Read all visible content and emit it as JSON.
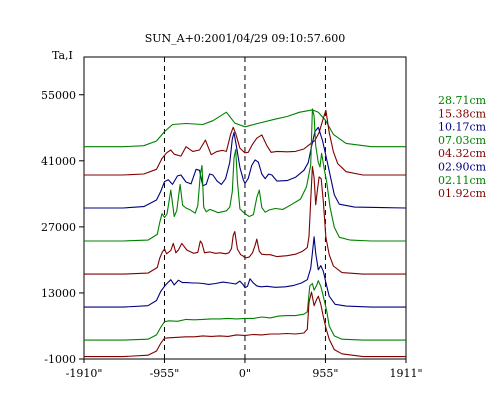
{
  "chart_data": {
    "type": "line",
    "title": "SUN_A+0:2001/04/29 09:10:57.600",
    "ylabel": "Ta,I",
    "xlabel": "",
    "xlim": [
      -1910,
      1911
    ],
    "ylim": [
      -1000,
      63000
    ],
    "x_ticks": [
      {
        "value": -1910,
        "label": "-1910\""
      },
      {
        "value": -955,
        "label": "-955\""
      },
      {
        "value": 0,
        "label": "0\""
      },
      {
        "value": 955,
        "label": "955\""
      },
      {
        "value": 1911,
        "label": "1911\""
      }
    ],
    "y_ticks": [
      {
        "value": 55000,
        "label": "55000"
      },
      {
        "value": 41000,
        "label": "41000"
      },
      {
        "value": 27000,
        "label": "27000"
      },
      {
        "value": 13000,
        "label": "13000"
      },
      {
        "value": -1000,
        "label": "-1000"
      }
    ],
    "vlines": [
      -955,
      0,
      955
    ],
    "grid": false,
    "legend": "right",
    "series": [
      {
        "name": "28.71cm",
        "color": "#008000",
        "x": [
          -1910,
          -1450,
          -1200,
          -1050,
          -955,
          -860,
          -700,
          -500,
          -380,
          -220,
          -120,
          0,
          150,
          350,
          500,
          650,
          800,
          870,
          955,
          1050,
          1200,
          1500,
          1911
        ],
        "y": [
          44000,
          44000,
          44200,
          45200,
          47200,
          48700,
          48900,
          48700,
          49500,
          51300,
          49000,
          48200,
          48900,
          49800,
          50400,
          51300,
          51800,
          51300,
          49600,
          46600,
          44700,
          44000,
          44000
        ]
      },
      {
        "name": "15.38cm",
        "color": "#800000",
        "x": [
          -1910,
          -1450,
          -1200,
          -1050,
          -985,
          -930,
          -880,
          -840,
          -760,
          -700,
          -620,
          -540,
          -470,
          -400,
          -330,
          -270,
          -220,
          -170,
          -140,
          -110,
          -60,
          -20,
          0,
          40,
          90,
          140,
          200,
          260,
          310,
          380,
          500,
          600,
          700,
          770,
          830,
          880,
          930,
          960,
          1000,
          1050,
          1100,
          1200,
          1400,
          1911
        ],
        "y": [
          38000,
          38000,
          38200,
          39200,
          41500,
          42700,
          43300,
          42400,
          42000,
          44000,
          43000,
          43300,
          45400,
          42300,
          43000,
          43200,
          43000,
          46600,
          48100,
          46800,
          43700,
          43000,
          42700,
          42800,
          44500,
          45800,
          46500,
          44200,
          42800,
          43000,
          42900,
          43000,
          43500,
          44500,
          45300,
          47000,
          50000,
          51700,
          47000,
          42900,
          40400,
          38700,
          38000,
          38000
        ]
      },
      {
        "name": "10.17cm",
        "color": "#000080",
        "x": [
          -1910,
          -1450,
          -1200,
          -1050,
          -1000,
          -955,
          -910,
          -860,
          -800,
          -760,
          -700,
          -640,
          -580,
          -540,
          -500,
          -460,
          -420,
          -380,
          -330,
          -280,
          -230,
          -180,
          -150,
          -130,
          -100,
          -60,
          -20,
          0,
          40,
          80,
          120,
          160,
          200,
          240,
          280,
          320,
          380,
          500,
          600,
          700,
          750,
          790,
          830,
          870,
          920,
          970,
          1020,
          1060,
          1120,
          1300,
          1911
        ],
        "y": [
          31000,
          31000,
          31300,
          32700,
          34500,
          36600,
          37000,
          36000,
          37800,
          38000,
          36500,
          36100,
          39200,
          39000,
          35700,
          36000,
          38200,
          38000,
          36700,
          36000,
          37200,
          40700,
          45600,
          47000,
          44000,
          39600,
          37000,
          36200,
          37300,
          40000,
          41200,
          40700,
          38200,
          37200,
          38200,
          38000,
          36700,
          36800,
          37500,
          39000,
          40600,
          44000,
          47200,
          48100,
          45300,
          41300,
          37200,
          33800,
          31800,
          31200,
          31000
        ]
      },
      {
        "name": "07.03cm",
        "color": "#008000",
        "x": [
          -1910,
          -1450,
          -1150,
          -1040,
          -1010,
          -985,
          -955,
          -925,
          -880,
          -840,
          -810,
          -770,
          -740,
          -700,
          -650,
          -590,
          -560,
          -530,
          -510,
          -490,
          -460,
          -420,
          -370,
          -320,
          -270,
          -220,
          -180,
          -150,
          -130,
          -110,
          -90,
          -60,
          -30,
          0,
          50,
          100,
          140,
          170,
          200,
          240,
          290,
          360,
          450,
          560,
          660,
          730,
          780,
          800,
          820,
          840,
          870,
          890,
          910,
          940,
          970,
          1010,
          1060,
          1120,
          1250,
          1500,
          1911
        ],
        "y": [
          24000,
          24000,
          24200,
          25400,
          28000,
          29800,
          29000,
          29700,
          34800,
          29200,
          30400,
          36000,
          31600,
          31000,
          30600,
          29900,
          31500,
          38100,
          40000,
          31200,
          30200,
          30700,
          30400,
          30000,
          30200,
          30400,
          31200,
          34500,
          41600,
          43400,
          36700,
          30800,
          30300,
          29800,
          29200,
          29600,
          33200,
          34800,
          31100,
          30100,
          30600,
          30900,
          30700,
          31800,
          32900,
          35500,
          40100,
          52000,
          50500,
          44200,
          40600,
          39700,
          42600,
          39300,
          36500,
          31100,
          26900,
          24800,
          24200,
          24000,
          24000
        ]
      },
      {
        "name": "04.32cm",
        "color": "#800000",
        "x": [
          -1910,
          -1450,
          -1150,
          -1040,
          -1010,
          -980,
          -955,
          -930,
          -880,
          -850,
          -820,
          -790,
          -750,
          -690,
          -610,
          -560,
          -530,
          -510,
          -480,
          -420,
          -350,
          -290,
          -230,
          -190,
          -160,
          -140,
          -120,
          -90,
          -50,
          -20,
          0,
          50,
          90,
          120,
          140,
          170,
          200,
          250,
          300,
          380,
          500,
          600,
          680,
          740,
          760,
          780,
          800,
          820,
          840,
          860,
          880,
          905,
          930,
          960,
          1000,
          1050,
          1150,
          1400,
          1911
        ],
        "y": [
          17000,
          17000,
          17200,
          18400,
          20400,
          21700,
          22300,
          21300,
          22000,
          23500,
          21500,
          22100,
          23500,
          22100,
          21400,
          21600,
          24000,
          23500,
          21500,
          21700,
          21400,
          21500,
          21300,
          21500,
          22400,
          25200,
          26000,
          22300,
          21100,
          20800,
          20400,
          20600,
          21500,
          23100,
          24400,
          21800,
          21200,
          21100,
          21100,
          20700,
          20900,
          21200,
          21800,
          22600,
          25000,
          32500,
          39800,
          37400,
          31700,
          34800,
          37600,
          37200,
          32400,
          24800,
          21100,
          18700,
          17300,
          17000,
          17000
        ]
      },
      {
        "name": "02.90cm",
        "color": "#000080",
        "x": [
          -1910,
          -1450,
          -1150,
          -1050,
          -1000,
          -955,
          -920,
          -880,
          -840,
          -790,
          -740,
          -690,
          -620,
          -560,
          -500,
          -430,
          -350,
          -260,
          -180,
          -110,
          -60,
          -20,
          0,
          30,
          60,
          100,
          140,
          190,
          260,
          360,
          480,
          580,
          670,
          740,
          780,
          800,
          820,
          840,
          870,
          900,
          930,
          960,
          1000,
          1070,
          1200,
          1500,
          1911
        ],
        "y": [
          10000,
          10000,
          10300,
          11400,
          13300,
          14400,
          15100,
          15800,
          14700,
          15700,
          15200,
          15200,
          15100,
          15100,
          15000,
          14800,
          15000,
          15300,
          15100,
          14900,
          15500,
          14700,
          14100,
          14400,
          16000,
          15100,
          14500,
          14300,
          14400,
          14200,
          14300,
          14600,
          15100,
          15800,
          18200,
          21500,
          24900,
          21400,
          17900,
          18800,
          17600,
          15200,
          12300,
          10600,
          10200,
          10000,
          10000
        ]
      },
      {
        "name": "02.11cm",
        "color": "#008000",
        "x": [
          -1910,
          -1450,
          -1150,
          -1050,
          -1000,
          -955,
          -900,
          -800,
          -700,
          -600,
          -500,
          -400,
          -300,
          -200,
          -100,
          0,
          100,
          200,
          300,
          400,
          500,
          600,
          700,
          740,
          770,
          800,
          820,
          850,
          870,
          900,
          930,
          970,
          1000,
          1060,
          1150,
          1400,
          1911
        ],
        "y": [
          3000,
          3000,
          3200,
          4100,
          5700,
          6900,
          7100,
          7000,
          7400,
          7300,
          7400,
          7500,
          7500,
          7600,
          7500,
          7600,
          7600,
          7900,
          7700,
          8100,
          8200,
          8200,
          8500,
          9000,
          14500,
          15000,
          13600,
          14600,
          15600,
          14400,
          12300,
          9200,
          6000,
          3900,
          3200,
          3000,
          3000
        ]
      },
      {
        "name": "01.92cm",
        "color": "#800000",
        "x": [
          -1910,
          -1450,
          -1150,
          -1050,
          -1000,
          -955,
          -900,
          -800,
          -700,
          -600,
          -500,
          -400,
          -300,
          -200,
          -100,
          0,
          100,
          200,
          300,
          400,
          500,
          600,
          700,
          740,
          760,
          790,
          820,
          850,
          870,
          900,
          930,
          960,
          1000,
          1060,
          1150,
          1400,
          1911
        ],
        "y": [
          -500,
          -500,
          -200,
          700,
          2300,
          3400,
          3500,
          3600,
          3700,
          3700,
          3900,
          3800,
          3900,
          3800,
          4100,
          4000,
          4200,
          4100,
          4300,
          4300,
          4400,
          4300,
          4500,
          5300,
          11000,
          13200,
          10300,
          11600,
          12300,
          10600,
          8000,
          5600,
          3200,
          1000,
          100,
          -500,
          -500
        ]
      }
    ]
  }
}
